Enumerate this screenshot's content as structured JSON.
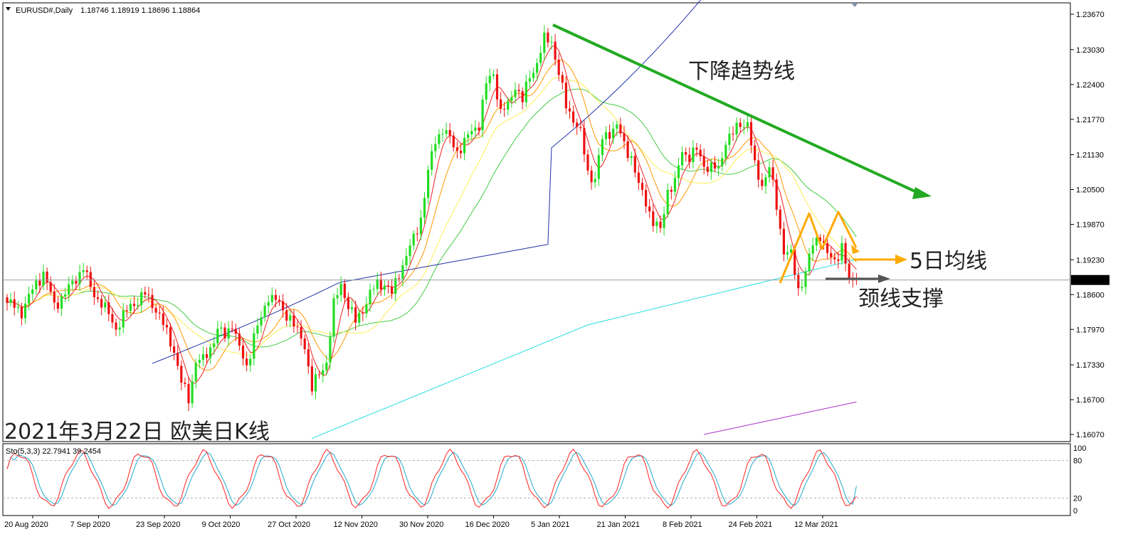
{
  "header": {
    "symbol": "EURUSD#,Daily",
    "ohlc": "1.18746 1.18919 1.18696 1.18864"
  },
  "indicator_header": "Sto(5,3,3) 22.7941 39.2454",
  "annotations": {
    "trendline": "下降趋势线",
    "ma5": "5日均线",
    "neckline": "颈线支撑",
    "date_title": "2021年3月22日 欧美日K线"
  },
  "current_price_label": "1.18864",
  "colors": {
    "bull": "#22dd22",
    "bear": "#ee1111",
    "ma5": "#ee2222",
    "ma10": "#ff9900",
    "ma20": "#ffee55",
    "ma30": "#44cc44",
    "ma60": "#2233aa",
    "ma120": "#22dddd",
    "ma240": "#aa33cc",
    "trend_arrow": "#22aa22",
    "pattern_arrow": "#ffaa00",
    "neck_arrow": "#555555",
    "sto_main": "#ff2222",
    "sto_signal": "#22aacc"
  },
  "chart_data": {
    "type": "candlestick",
    "price_axis_ticks": [
      "1.23670",
      "1.23030",
      "1.22400",
      "1.21770",
      "1.21130",
      "1.20500",
      "1.19870",
      "1.19230",
      "1.18600",
      "1.17970",
      "1.17330",
      "1.16700",
      "1.16070"
    ],
    "stochastic_axis_ticks": [
      "100",
      "80",
      "20",
      "0"
    ],
    "date_ticks": [
      "20 Aug 2020",
      "7 Sep 2020",
      "23 Sep 2020",
      "9 Oct 2020",
      "27 Oct 2020",
      "12 Nov 2020",
      "30 Nov 2020",
      "16 Dec 2020",
      "5 Jan 2021",
      "21 Jan 2021",
      "8 Feb 2021",
      "24 Feb 2021",
      "12 Mar 2021"
    ],
    "current_price": 1.18864,
    "close_anchors": [
      [
        0,
        1.1845
      ],
      [
        4,
        1.183
      ],
      [
        8,
        1.188
      ],
      [
        10,
        1.19
      ],
      [
        13,
        1.184
      ],
      [
        17,
        1.187
      ],
      [
        21,
        1.191
      ],
      [
        23,
        1.187
      ],
      [
        26,
        1.1845
      ],
      [
        30,
        1.18
      ],
      [
        34,
        1.184
      ],
      [
        38,
        1.186
      ],
      [
        41,
        1.1835
      ],
      [
        44,
        1.179
      ],
      [
        46,
        1.176
      ],
      [
        48,
        1.17
      ],
      [
        50,
        1.1672
      ],
      [
        52,
        1.174
      ],
      [
        54,
        1.174
      ],
      [
        56,
        1.1765
      ],
      [
        58,
        1.1795
      ],
      [
        60,
        1.1785
      ],
      [
        62,
        1.181
      ],
      [
        64,
        1.176
      ],
      [
        66,
        1.173
      ],
      [
        68,
        1.1785
      ],
      [
        70,
        1.1815
      ],
      [
        72,
        1.186
      ],
      [
        74,
        1.185
      ],
      [
        76,
        1.183
      ],
      [
        78,
        1.182
      ],
      [
        80,
        1.179
      ],
      [
        82,
        1.177
      ],
      [
        84,
        1.169
      ],
      [
        86,
        1.1715
      ],
      [
        88,
        1.174
      ],
      [
        90,
        1.184
      ],
      [
        92,
        1.188
      ],
      [
        94,
        1.184
      ],
      [
        96,
        1.181
      ],
      [
        98,
        1.1835
      ],
      [
        100,
        1.186
      ],
      [
        102,
        1.188
      ],
      [
        104,
        1.188
      ],
      [
        106,
        1.186
      ],
      [
        108,
        1.19
      ],
      [
        110,
        1.193
      ],
      [
        112,
        1.196
      ],
      [
        114,
        1.2
      ],
      [
        116,
        1.208
      ],
      [
        118,
        1.214
      ],
      [
        120,
        1.216
      ],
      [
        122,
        1.214
      ],
      [
        124,
        1.212
      ],
      [
        126,
        1.2135
      ],
      [
        128,
        1.2155
      ],
      [
        130,
        1.217
      ],
      [
        132,
        1.224
      ],
      [
        134,
        1.226
      ],
      [
        136,
        1.219
      ],
      [
        138,
        1.22
      ],
      [
        140,
        1.224
      ],
      [
        142,
        1.221
      ],
      [
        144,
        1.2255
      ],
      [
        146,
        1.228
      ],
      [
        148,
        1.232
      ],
      [
        150,
        1.232
      ],
      [
        152,
        1.226
      ],
      [
        154,
        1.22
      ],
      [
        156,
        1.218
      ],
      [
        158,
        1.215
      ],
      [
        160,
        1.208
      ],
      [
        162,
        1.207
      ],
      [
        164,
        1.214
      ],
      [
        166,
        1.2155
      ],
      [
        168,
        1.2165
      ],
      [
        170,
        1.213
      ],
      [
        172,
        1.211
      ],
      [
        174,
        1.2055
      ],
      [
        176,
        1.203
      ],
      [
        178,
        1.199
      ],
      [
        180,
        1.1975
      ],
      [
        182,
        1.205
      ],
      [
        184,
        1.206
      ],
      [
        186,
        1.212
      ],
      [
        188,
        1.211
      ],
      [
        190,
        1.212
      ],
      [
        192,
        1.2095
      ],
      [
        194,
        1.209
      ],
      [
        196,
        1.2085
      ],
      [
        198,
        1.214
      ],
      [
        200,
        1.215
      ],
      [
        202,
        1.217
      ],
      [
        204,
        1.217
      ],
      [
        206,
        1.209
      ],
      [
        208,
        1.206
      ],
      [
        210,
        1.209
      ],
      [
        212,
        1.202
      ],
      [
        214,
        1.194
      ],
      [
        216,
        1.193
      ],
      [
        218,
        1.187
      ],
      [
        220,
        1.19
      ],
      [
        222,
        1.195
      ],
      [
        224,
        1.197
      ],
      [
        226,
        1.193
      ],
      [
        228,
        1.192
      ],
      [
        230,
        1.195
      ],
      [
        232,
        1.188
      ],
      [
        234,
        1.1886
      ]
    ]
  }
}
